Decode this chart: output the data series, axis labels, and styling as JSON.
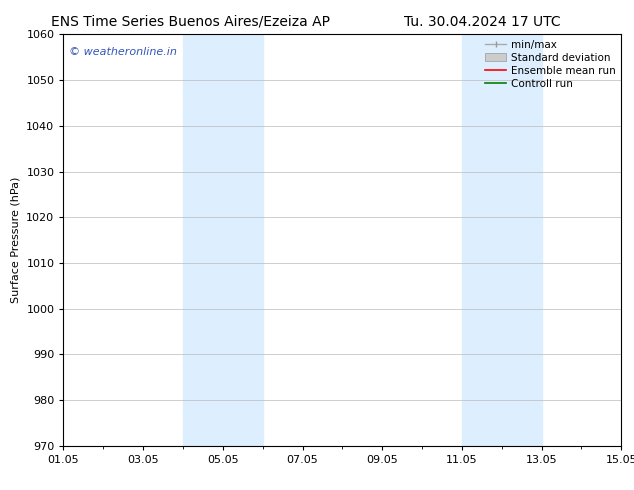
{
  "title_left": "ENS Time Series Buenos Aires/Ezeiza AP",
  "title_right": "Tu. 30.04.2024 17 UTC",
  "ylabel": "Surface Pressure (hPa)",
  "ylim": [
    970,
    1060
  ],
  "yticks": [
    970,
    980,
    990,
    1000,
    1010,
    1020,
    1030,
    1040,
    1050,
    1060
  ],
  "xtick_labels": [
    "01.05",
    "03.05",
    "05.05",
    "07.05",
    "09.05",
    "11.05",
    "13.05",
    "15.05"
  ],
  "xtick_positions": [
    0,
    2,
    4,
    6,
    8,
    10,
    12,
    14
  ],
  "xlim": [
    0,
    14
  ],
  "shaded_regions": [
    {
      "x_start": 3.0,
      "x_end": 5.0,
      "color": "#ddeeff"
    },
    {
      "x_start": 10.0,
      "x_end": 12.0,
      "color": "#ddeeff"
    }
  ],
  "watermark_text": "© weatheronline.in",
  "watermark_color": "#3355bb",
  "watermark_fontsize": 8,
  "background_color": "#ffffff",
  "grid_color": "#bbbbbb",
  "title_fontsize": 10,
  "axis_fontsize": 8,
  "tick_fontsize": 8,
  "legend_fontsize": 7.5
}
